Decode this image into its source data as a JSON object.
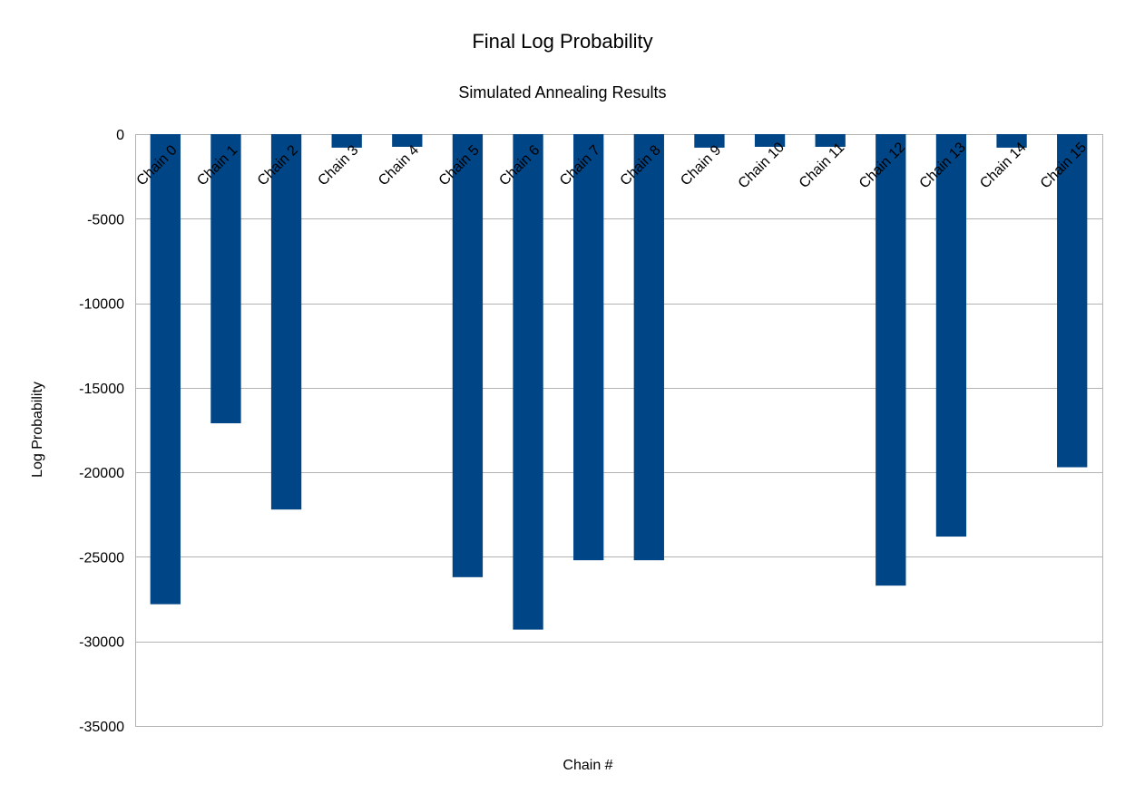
{
  "chart_data": {
    "type": "bar",
    "title": "Final Log Probability",
    "subtitle": "Simulated Annealing Results",
    "xlabel": "Chain #",
    "ylabel": "Log Probability",
    "ylim": [
      -35000,
      0
    ],
    "yticks": [
      0,
      -5000,
      -10000,
      -15000,
      -20000,
      -25000,
      -30000,
      -35000
    ],
    "grid": true,
    "legend": "none",
    "bar_color": "#004586",
    "categories": [
      "Chain 0",
      "Chain 1",
      "Chain 2",
      "Chain 3",
      "Chain 4",
      "Chain 5",
      "Chain 6",
      "Chain 7",
      "Chain 8",
      "Chain 9",
      "Chain 10",
      "Chain 11",
      "Chain 12",
      "Chain 13",
      "Chain 14",
      "Chain 15"
    ],
    "values": [
      -27800,
      -17100,
      -22200,
      -800,
      -750,
      -26200,
      -29300,
      -25200,
      -25200,
      -800,
      -750,
      -750,
      -26700,
      -23800,
      -800,
      -19700
    ]
  }
}
